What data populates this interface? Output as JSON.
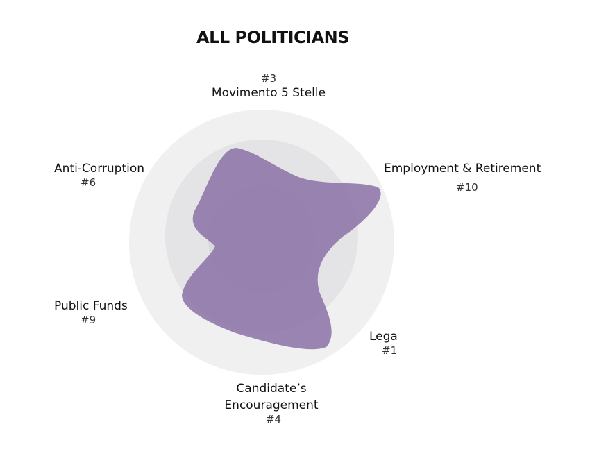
{
  "chart_data": {
    "type": "radar",
    "title": "ALL POLITICIANS",
    "fill_color": "#8c74a8",
    "ring_colors": [
      "#f0f0f0",
      "#e4e4e6",
      "#d9d9dc"
    ],
    "axes": [
      {
        "label": "Movimento 5 Stelle",
        "rank": "#3",
        "value": 0.7
      },
      {
        "label": "Employment & Retirement",
        "rank": "#10",
        "value": 0.95
      },
      {
        "label": "Lega",
        "rank": "#1",
        "value": 0.85
      },
      {
        "label": "Candidate’s Encouragement",
        "label_lines": [
          "Candidate’s",
          "Encouragement"
        ],
        "rank": "#4",
        "value": 0.84
      },
      {
        "label": "Public Funds",
        "rank": "#9",
        "value": 0.62
      },
      {
        "label": "Anti-Corruption",
        "rank": "#6",
        "value": 0.55
      }
    ],
    "range": [
      0,
      1
    ]
  }
}
